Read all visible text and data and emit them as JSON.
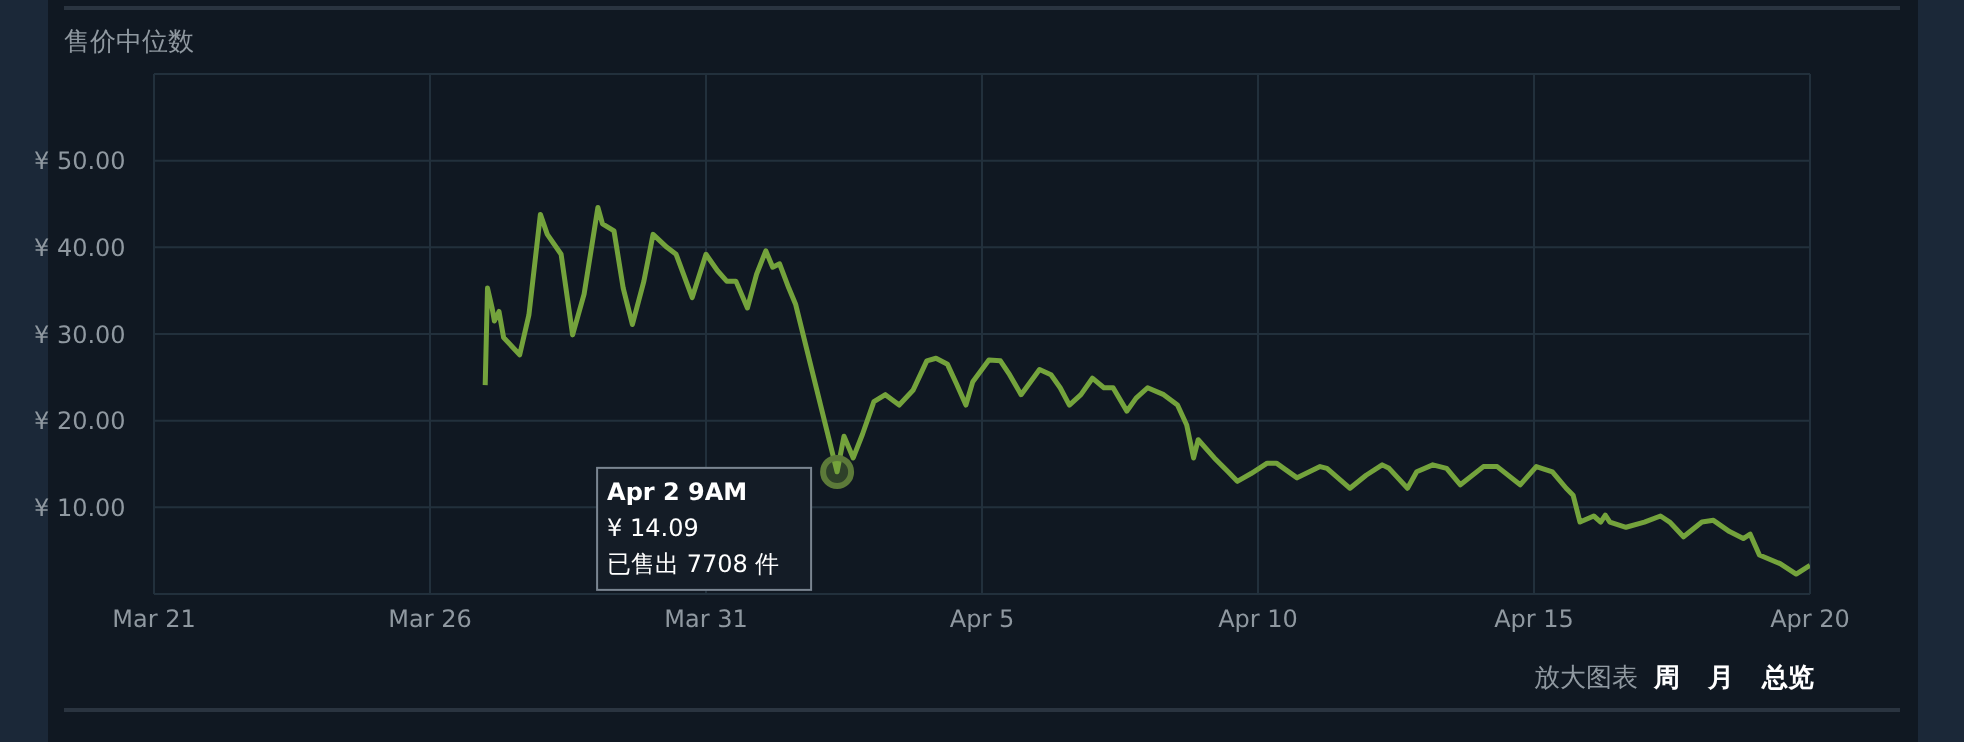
{
  "chart_data": {
    "type": "line",
    "title": "售价中位数",
    "x": [
      "--03-27T00:00",
      "--03-27T01:00",
      "--03-27T03:00",
      "--03-27T04:00",
      "--03-27T06:00",
      "--03-27T08:00",
      "--03-27T15:00",
      "--03-27T19:00",
      "--03-28T00:00",
      "--03-28T03:00",
      "--03-28T09:00",
      "--03-28T14:00",
      "--03-28T19:00",
      "--03-29T01:00",
      "--03-29T03:00",
      "--03-29T08:00",
      "--03-29T12:00",
      "--03-29T16:00",
      "--03-29T21:00",
      "--03-30T01:00",
      "--03-30T07:00",
      "--03-30T11:00",
      "--03-30T18:00",
      "--03-31T00:00",
      "--03-31T05:00",
      "--03-31T09:00",
      "--03-31T13:00",
      "--03-31T18:00",
      "--03-31T22:00",
      "--04-01T02:00",
      "--04-01T05:00",
      "--04-01T08:00",
      "--04-01T12:00",
      "--04-01T15:00",
      "--04-02T09:00",
      "--04-02T12:00",
      "--04-02T16:00",
      "--04-02T20:00",
      "--04-03T01:00",
      "--04-03T06:00",
      "--04-03T12:00",
      "--04-03T18:00",
      "--04-04T00:00",
      "--04-04T04:00",
      "--04-04T09:00",
      "--04-04T13:00",
      "--04-04T17:00",
      "--04-04T20:00",
      "--04-05T03:00",
      "--04-05T08:00",
      "--04-05T12:00",
      "--04-05T17:00",
      "--04-06T01:00",
      "--04-06T06:00",
      "--04-06T10:00",
      "--04-06T14:00",
      "--04-06T19:00",
      "--04-07T00:00",
      "--04-07T05:00",
      "--04-07T09:00",
      "--04-07T15:00",
      "--04-07T19:00",
      "--04-08T00:00",
      "--04-08T07:00",
      "--04-08T13:00",
      "--04-08T17:00",
      "--04-08T20:00",
      "--04-08T22:00",
      "--04-09T05:00",
      "--04-09T11:00",
      "--04-09T15:00",
      "--04-09T21:00",
      "--04-10T04:00",
      "--04-10T08:00",
      "--04-10T17:00",
      "--04-11T03:00",
      "--04-11T06:00",
      "--04-11T16:00",
      "--04-11T23:00",
      "--04-12T06:00",
      "--04-12T09:00",
      "--04-12T17:00",
      "--04-12T21:00",
      "--04-13T04:00",
      "--04-13T10:00",
      "--04-13T16:00",
      "--04-14T02:00",
      "--04-14T08:00",
      "--04-14T18:00",
      "--04-15T01:00",
      "--04-15T08:00",
      "--04-15T14:00",
      "--04-15T17:00",
      "--04-15T20:00",
      "--04-16T02:00",
      "--04-16T05:00",
      "--04-16T07:00",
      "--04-16T09:00",
      "--04-16T16:00",
      "--04-17T00:00",
      "--04-17T07:00",
      "--04-17T11:00",
      "--04-17T17:00",
      "--04-18T01:00",
      "--04-18T06:00",
      "--04-18T13:00",
      "--04-18T19:00",
      "--04-18T22:00",
      "--04-19T02:00",
      "--04-19T11:00",
      "--04-19T18:00",
      "--04-20T00:00"
    ],
    "series": [
      {
        "color": "#74a33c",
        "values": [
          24.1,
          35.3,
          33.0,
          31.5,
          32.6,
          29.6,
          27.6,
          32.2,
          43.8,
          41.5,
          39.2,
          29.9,
          34.6,
          44.6,
          42.7,
          41.9,
          35.3,
          31.1,
          36.1,
          41.5,
          40.0,
          39.2,
          34.2,
          39.2,
          37.3,
          36.1,
          36.1,
          33.0,
          36.9,
          39.6,
          37.7,
          38.1,
          35.3,
          33.4,
          14.1,
          18.2,
          15.7,
          18.4,
          22.2,
          23.0,
          21.8,
          23.5,
          26.9,
          27.2,
          26.5,
          24.2,
          21.8,
          24.5,
          27.0,
          26.9,
          25.3,
          23.0,
          25.9,
          25.3,
          23.8,
          21.8,
          23.0,
          24.9,
          23.8,
          23.8,
          21.1,
          22.6,
          23.8,
          23.0,
          21.8,
          19.5,
          15.7,
          17.8,
          15.7,
          14.1,
          13.0,
          13.9,
          15.1,
          15.1,
          13.4,
          14.7,
          14.5,
          12.2,
          13.7,
          14.9,
          14.5,
          12.2,
          14.1,
          14.9,
          14.5,
          12.6,
          14.7,
          14.7,
          12.6,
          14.7,
          14.1,
          12.2,
          11.4,
          8.3,
          9.0,
          8.3,
          9.1,
          8.3,
          7.7,
          8.3,
          9.0,
          8.3,
          6.6,
          8.3,
          8.5,
          7.2,
          6.4,
          6.9,
          4.5,
          3.5,
          2.3,
          3.3
        ]
      }
    ],
    "xlim": [
      "--03-21",
      "--04-20"
    ],
    "xticks": [
      {
        "value": "--03-21",
        "label": "Mar 21"
      },
      {
        "value": "--03-26",
        "label": "Mar 26"
      },
      {
        "value": "--03-31",
        "label": "Mar 31"
      },
      {
        "value": "--04-05",
        "label": "Apr 5"
      },
      {
        "value": "--04-10",
        "label": "Apr 10"
      },
      {
        "value": "--04-15",
        "label": "Apr 15"
      },
      {
        "value": "--04-20",
        "label": "Apr 20"
      }
    ],
    "ylim": [
      0,
      60
    ],
    "yticks": [
      {
        "value": 10,
        "label": "¥ 10.00"
      },
      {
        "value": 20,
        "label": "¥ 20.00"
      },
      {
        "value": 30,
        "label": "¥ 30.00"
      },
      {
        "value": 40,
        "label": "¥ 40.00"
      },
      {
        "value": 50,
        "label": "¥ 50.00"
      },
      {
        "value": 60,
        "label": null
      }
    ],
    "grid": true,
    "legend": false,
    "marker": "none",
    "line_style": "solid",
    "annotations": [
      {
        "text": "Apr 2 9AM\n¥ 14.09\n已售出 7708 件",
        "x": "--04-02T09:00",
        "y": 14.09
      },
      "放大图表",
      "周",
      "月",
      "总览"
    ]
  }
}
